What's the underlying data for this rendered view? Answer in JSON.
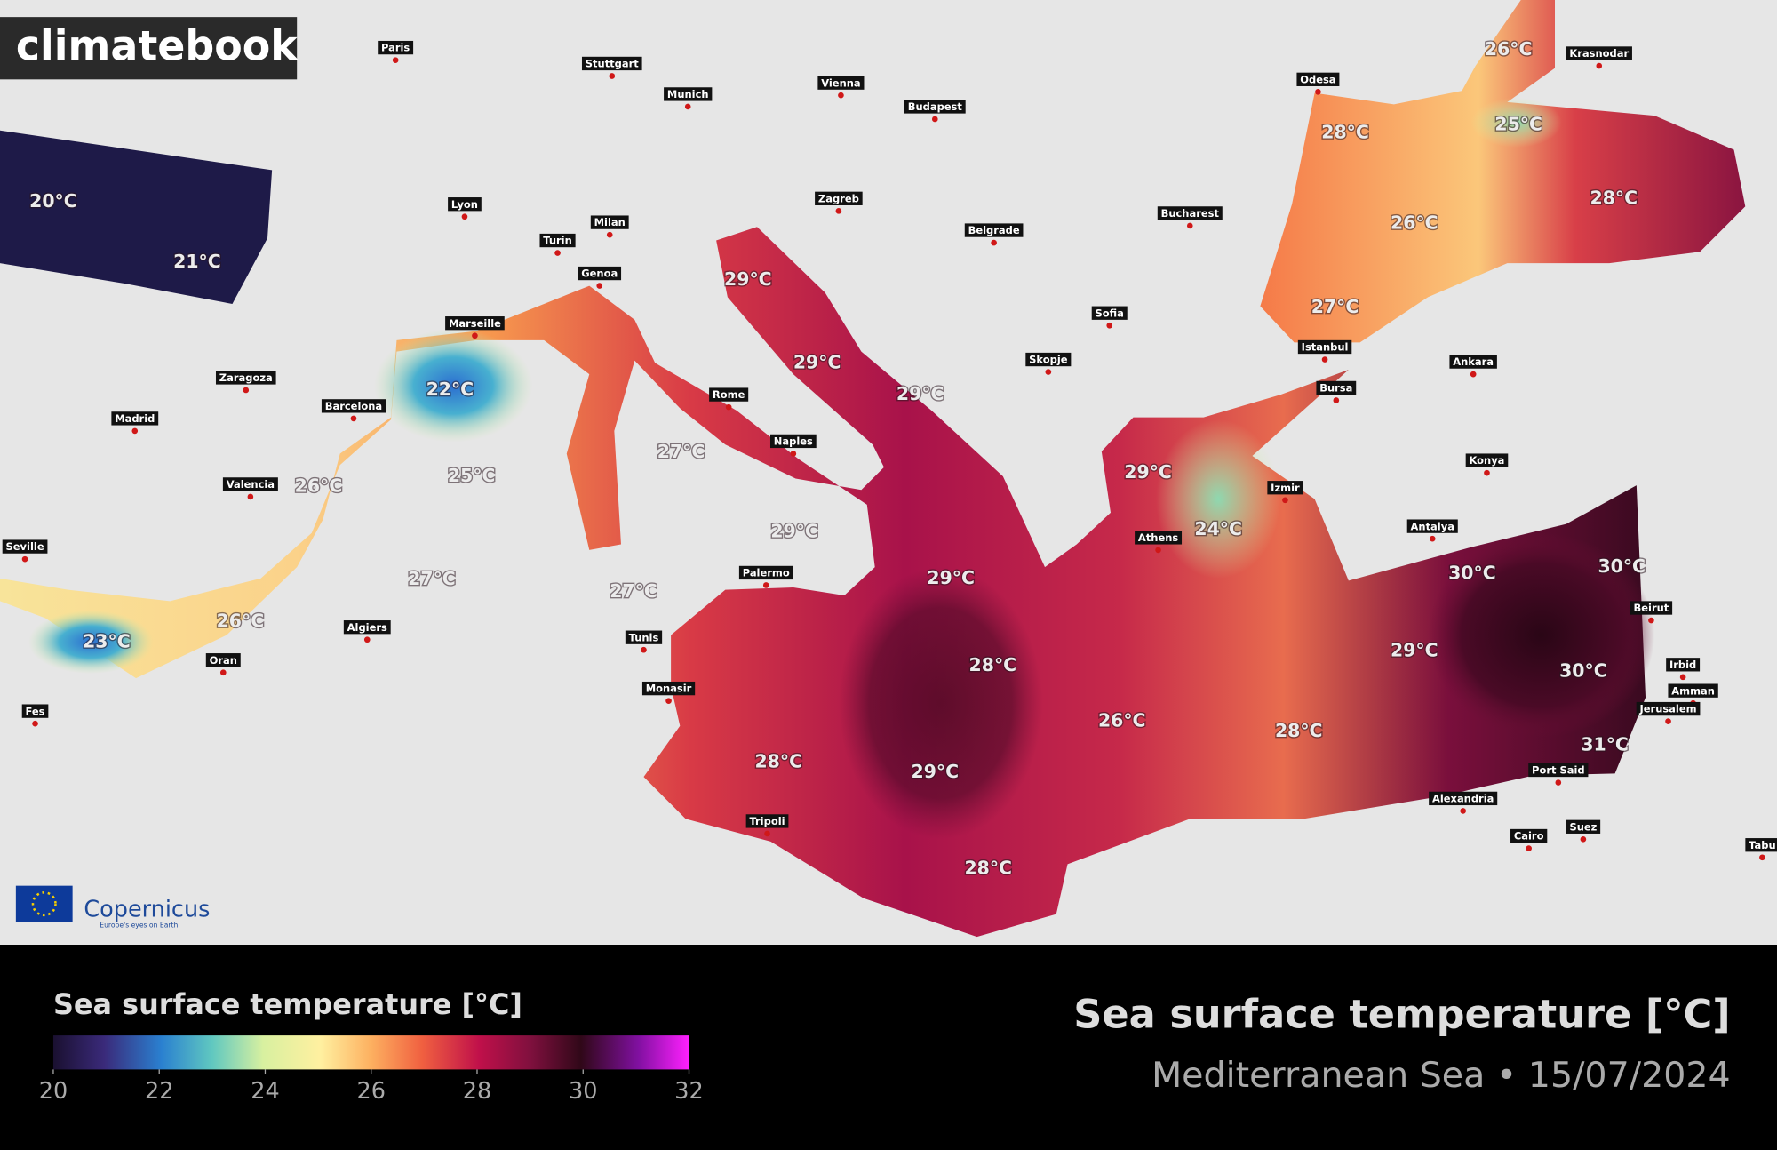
{
  "logo": "climatebook",
  "cities": [
    "Paris",
    "Stuttgart",
    "Munich",
    "Vienna",
    "Budapest",
    "Odesa",
    "Krasnodar",
    "Lyon",
    "Milan",
    "Turin",
    "Zagreb",
    "Belgrade",
    "Bucharest",
    "Genoa",
    "Sofia",
    "Istanbul",
    "Ankara",
    "Marseille",
    "Skopje",
    "Bursa",
    "Zaragoza",
    "Barcelona",
    "Rome",
    "Madrid",
    "Naples",
    "Konya",
    "Valencia",
    "Izmir",
    "Seville",
    "Athens",
    "Antalya",
    "Palermo",
    "Beirut",
    "Algiers",
    "Tunis",
    "Oran",
    "Irbid",
    "Amman",
    "Monasir",
    "Fes",
    "Jerusalem",
    "Port Said",
    "Alexandria",
    "Tripoli",
    "Cairo",
    "Suez",
    "Tabu"
  ],
  "sea_labels": [
    "20°C",
    "21°C",
    "26°C",
    "28°C",
    "25°C",
    "28°C",
    "26°C",
    "27°C",
    "29°C",
    "29°C",
    "29°C",
    "22°C",
    "27°C",
    "25°C",
    "26°C",
    "29°C",
    "29°C",
    "24°C",
    "29°C",
    "30°C",
    "30°C",
    "27°C",
    "27°C",
    "26°C",
    "23°C",
    "29°C",
    "28°C",
    "30°C",
    "26°C",
    "28°C",
    "31°C",
    "28°C",
    "29°C",
    "28°C"
  ],
  "legend": {
    "title": "Sea surface temperature [°C]",
    "lim": [
      20,
      32
    ],
    "ticks": [
      20,
      22,
      24,
      26,
      28,
      30,
      32
    ]
  },
  "title": "Sea surface temperature [°C]",
  "subtitle": "Mediterranean Sea • 15/07/2024",
  "credit": {
    "name": "Copernicus",
    "tagline": "Europe's eyes on Earth"
  }
}
